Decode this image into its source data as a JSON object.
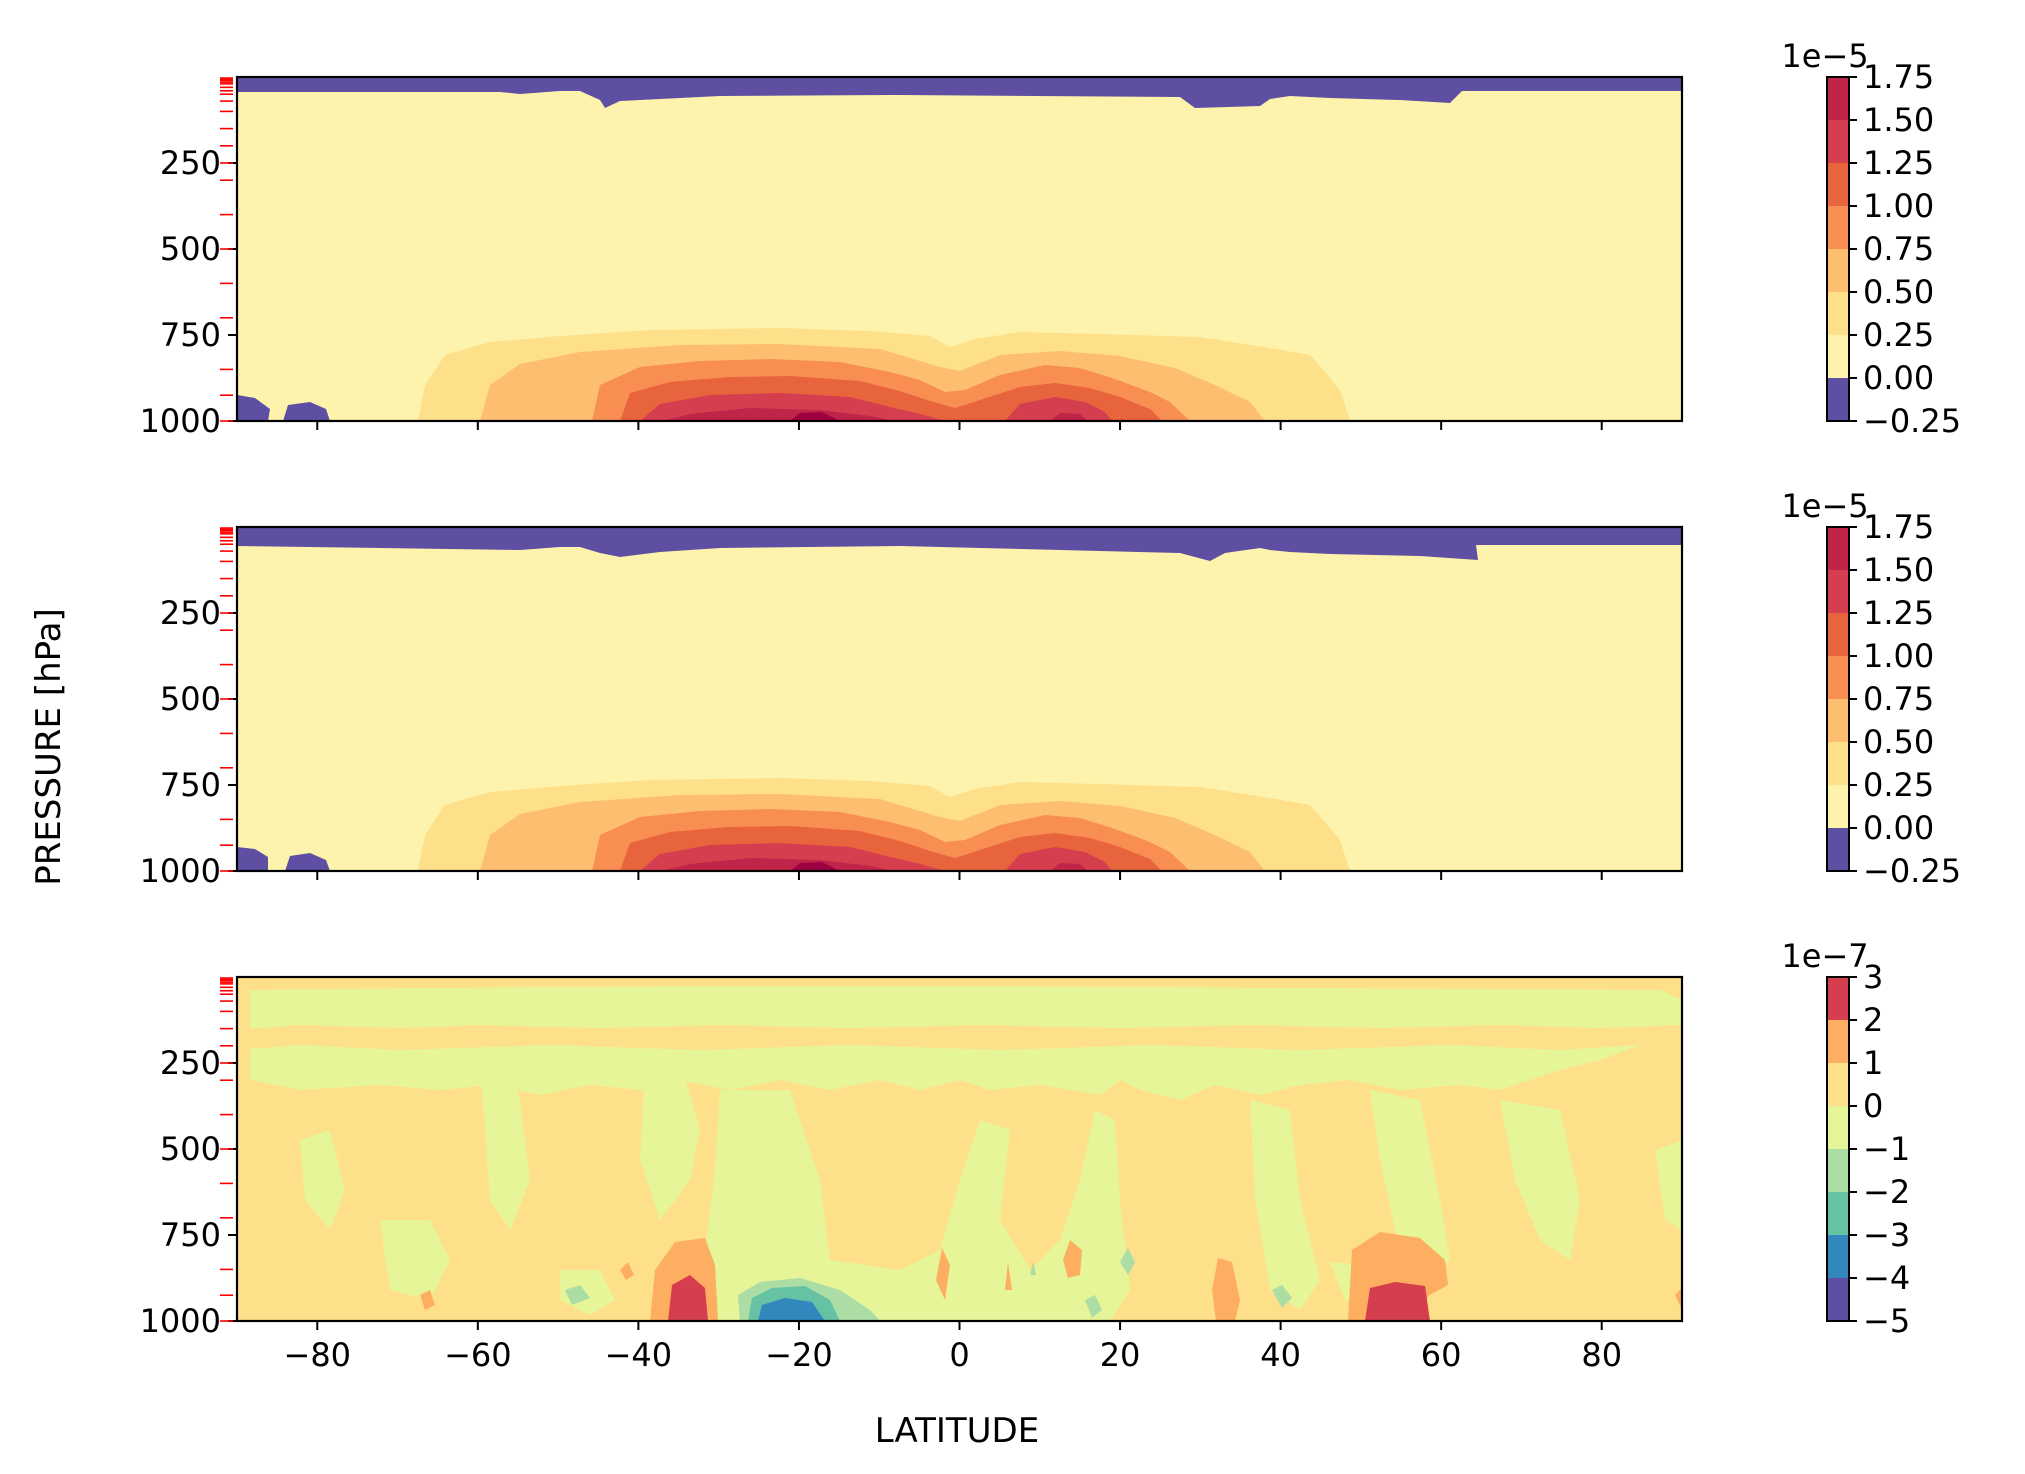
{
  "figure": {
    "ylabel": "PRESSURE [hPa]",
    "xlabel": "LATITUDE"
  },
  "chart_data": [
    {
      "type": "heatmap",
      "subtype": "filled-contour",
      "x": "latitude",
      "y": "pressure",
      "xlim": [
        -90,
        90
      ],
      "ylim": [
        1000,
        0
      ],
      "yticks": [
        "250",
        "500",
        "750",
        "1000"
      ],
      "ytick_values": [
        250,
        500,
        750,
        1000
      ],
      "xticks": [
        "−80",
        "−60",
        "−40",
        "−20",
        "0",
        "20",
        "40",
        "60",
        "80"
      ],
      "xtick_values": [
        -80,
        -60,
        -40,
        -20,
        0,
        20,
        40,
        60,
        80
      ],
      "model_levels_hpa": [
        3,
        7,
        10,
        15,
        20,
        30,
        40,
        50,
        70,
        100,
        150,
        200,
        250,
        300,
        400,
        500,
        600,
        700,
        850,
        925,
        1000
      ],
      "colorbar": {
        "exponent": "1e−5",
        "levels": [
          -0.25,
          0.0,
          0.25,
          0.5,
          0.75,
          1.0,
          1.25,
          1.5,
          1.75
        ],
        "ticklabels": [
          "−0.25",
          "0.00",
          "0.25",
          "0.50",
          "0.75",
          "1.00",
          "1.25",
          "1.50",
          "1.75"
        ],
        "colors": [
          "#5e4fa2",
          "#fef3ac",
          "#fee08b",
          "#fdbf6f",
          "#f98e52",
          "#e8643d",
          "#d53e4f",
          "#c02449",
          "#9e0142"
        ]
      }
    },
    {
      "type": "heatmap",
      "subtype": "filled-contour",
      "x": "latitude",
      "y": "pressure",
      "xlim": [
        -90,
        90
      ],
      "ylim": [
        1000,
        0
      ],
      "yticks": [
        "250",
        "500",
        "750",
        "1000"
      ],
      "ytick_values": [
        250,
        500,
        750,
        1000
      ],
      "xticks": [
        "−80",
        "−60",
        "−40",
        "−20",
        "0",
        "20",
        "40",
        "60",
        "80"
      ],
      "xtick_values": [
        -80,
        -60,
        -40,
        -20,
        0,
        20,
        40,
        60,
        80
      ],
      "model_levels_hpa": [
        3,
        7,
        10,
        15,
        20,
        30,
        40,
        50,
        70,
        100,
        150,
        200,
        250,
        300,
        400,
        500,
        600,
        700,
        850,
        925,
        1000
      ],
      "colorbar": {
        "exponent": "1e−5",
        "levels": [
          -0.25,
          0.0,
          0.25,
          0.5,
          0.75,
          1.0,
          1.25,
          1.5,
          1.75
        ],
        "ticklabels": [
          "−0.25",
          "0.00",
          "0.25",
          "0.50",
          "0.75",
          "1.00",
          "1.25",
          "1.50",
          "1.75"
        ],
        "colors": [
          "#5e4fa2",
          "#fef3ac",
          "#fee08b",
          "#fdbf6f",
          "#f98e52",
          "#e8643d",
          "#d53e4f",
          "#c02449",
          "#9e0142"
        ]
      }
    },
    {
      "type": "heatmap",
      "subtype": "filled-contour",
      "x": "latitude",
      "y": "pressure",
      "xlim": [
        -90,
        90
      ],
      "ylim": [
        1000,
        0
      ],
      "yticks": [
        "250",
        "500",
        "750",
        "1000"
      ],
      "ytick_values": [
        250,
        500,
        750,
        1000
      ],
      "xticks": [
        "−80",
        "−60",
        "−40",
        "−20",
        "0",
        "20",
        "40",
        "60",
        "80"
      ],
      "xtick_values": [
        -80,
        -60,
        -40,
        -20,
        0,
        20,
        40,
        60,
        80
      ],
      "model_levels_hpa": [
        3,
        7,
        10,
        15,
        20,
        30,
        40,
        50,
        70,
        100,
        150,
        200,
        250,
        300,
        400,
        500,
        600,
        700,
        850,
        925,
        1000
      ],
      "colorbar": {
        "exponent": "1e−7",
        "levels": [
          -5,
          -4,
          -3,
          -2,
          -1,
          0,
          1,
          2,
          3
        ],
        "ticklabels": [
          "−5",
          "−4",
          "−3",
          "−2",
          "−1",
          "0",
          "1",
          "2",
          "3"
        ],
        "colors": [
          "#5e4fa2",
          "#3288bd",
          "#66c2a5",
          "#abdda4",
          "#e6f598",
          "#fee08b",
          "#fdae61",
          "#d53e4f"
        ]
      }
    }
  ]
}
